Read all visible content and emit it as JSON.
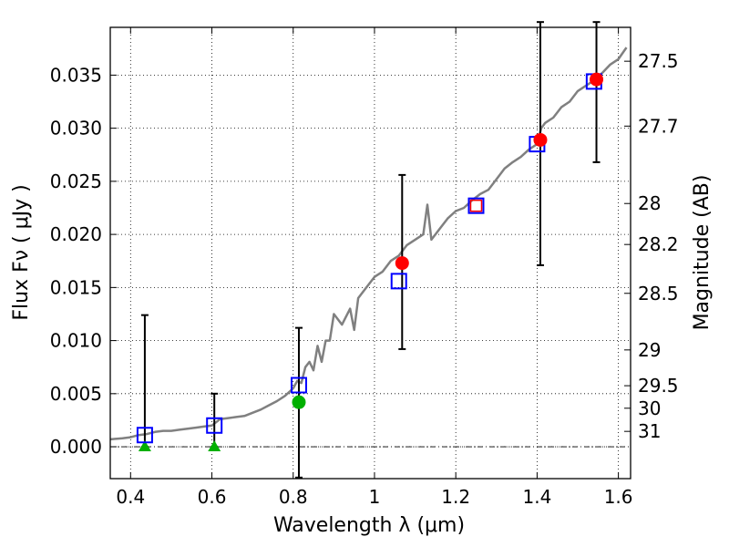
{
  "chart_data": {
    "type": "scatter",
    "xlabel": "Wavelength  λ (μm)",
    "ylabel_left": "Flux  Fν  ( μJy )",
    "ylabel_right": "Magnitude (AB)",
    "xlim": [
      0.35,
      1.63
    ],
    "ylim": [
      -0.003,
      0.0395
    ],
    "x_ticks": [
      0.4,
      0.6,
      0.8,
      1.0,
      1.2,
      1.4,
      1.6
    ],
    "x_tick_labels": [
      "0.4",
      "0.6",
      "0.8",
      "1",
      "1.2",
      "1.4",
      "1.6"
    ],
    "y_ticks": [
      0.0,
      0.005,
      0.01,
      0.015,
      0.02,
      0.025,
      0.03,
      0.035
    ],
    "y_tick_labels": [
      "0.000",
      "0.005",
      "0.010",
      "0.015",
      "0.020",
      "0.025",
      "0.030",
      "0.035"
    ],
    "right_ticks": [
      {
        "label": "27.5",
        "flux": 0.03631
      },
      {
        "label": "27.7",
        "flux": 0.0302
      },
      {
        "label": "28",
        "flux": 0.02291
      },
      {
        "label": "28.2",
        "flux": 0.01905
      },
      {
        "label": "28.5",
        "flux": 0.01445
      },
      {
        "label": "29",
        "flux": 0.00912
      },
      {
        "label": "29.5",
        "flux": 0.00575
      },
      {
        "label": "30",
        "flux": 0.00363
      },
      {
        "label": "31",
        "flux": 0.00145
      }
    ],
    "grid": true,
    "colors": {
      "model": "#808080",
      "squares": "#0000ff",
      "square_highlight": "#ff0000",
      "detections": "#ff0000",
      "marginal": "#00b000",
      "upper_limits": "#00b000",
      "errorbars": "#000000"
    },
    "model_spectrum": {
      "x": [
        0.35,
        0.38,
        0.4,
        0.42,
        0.44,
        0.46,
        0.48,
        0.5,
        0.52,
        0.54,
        0.56,
        0.58,
        0.6,
        0.62,
        0.64,
        0.66,
        0.68,
        0.7,
        0.72,
        0.74,
        0.76,
        0.78,
        0.8,
        0.81,
        0.82,
        0.83,
        0.84,
        0.85,
        0.86,
        0.87,
        0.88,
        0.89,
        0.9,
        0.92,
        0.94,
        0.95,
        0.96,
        0.98,
        1.0,
        1.02,
        1.04,
        1.06,
        1.08,
        1.1,
        1.12,
        1.13,
        1.14,
        1.16,
        1.18,
        1.2,
        1.22,
        1.24,
        1.26,
        1.28,
        1.3,
        1.32,
        1.34,
        1.36,
        1.38,
        1.4,
        1.41,
        1.42,
        1.44,
        1.46,
        1.48,
        1.5,
        1.52,
        1.54,
        1.56,
        1.58,
        1.6,
        1.62
      ],
      "y": [
        0.0007,
        0.0008,
        0.0009,
        0.0011,
        0.0012,
        0.0014,
        0.0015,
        0.0015,
        0.0016,
        0.0017,
        0.0018,
        0.0019,
        0.002,
        0.0026,
        0.0027,
        0.0028,
        0.0029,
        0.0032,
        0.0035,
        0.0039,
        0.0043,
        0.0048,
        0.0055,
        0.0062,
        0.006,
        0.0075,
        0.008,
        0.0072,
        0.0095,
        0.008,
        0.01,
        0.01,
        0.0125,
        0.0115,
        0.013,
        0.011,
        0.014,
        0.015,
        0.016,
        0.0165,
        0.0175,
        0.018,
        0.019,
        0.0195,
        0.02,
        0.0228,
        0.0195,
        0.0205,
        0.0215,
        0.0222,
        0.0225,
        0.0232,
        0.0238,
        0.0242,
        0.0252,
        0.0262,
        0.0268,
        0.0273,
        0.028,
        0.0285,
        0.03,
        0.0305,
        0.031,
        0.032,
        0.0325,
        0.0335,
        0.034,
        0.0345,
        0.0352,
        0.036,
        0.0365,
        0.0376
      ]
    },
    "squares": [
      {
        "x": 0.435,
        "y": 0.0011,
        "highlight": false
      },
      {
        "x": 0.606,
        "y": 0.002,
        "highlight": false
      },
      {
        "x": 0.814,
        "y": 0.0058,
        "highlight": false
      },
      {
        "x": 1.06,
        "y": 0.0156,
        "highlight": false
      },
      {
        "x": 1.25,
        "y": 0.0227,
        "highlight": true
      },
      {
        "x": 1.4,
        "y": 0.0285,
        "highlight": false
      },
      {
        "x": 1.54,
        "y": 0.0344,
        "highlight": false
      }
    ],
    "detections": [
      {
        "x": 1.068,
        "y": 0.0173,
        "yerr_low": 0.0092,
        "yerr_high": 0.0256
      },
      {
        "x": 1.408,
        "y": 0.0289,
        "yerr_low": 0.0171,
        "yerr_high": 0.04
      },
      {
        "x": 1.546,
        "y": 0.0346,
        "yerr_low": 0.0268,
        "yerr_high": 0.04
      }
    ],
    "marginal": [
      {
        "x": 0.814,
        "y": 0.0042,
        "yerr_low": -0.0029,
        "yerr_high": 0.0112
      }
    ],
    "upper_limits": [
      {
        "x": 0.435,
        "y": 0.0,
        "yerr_low": 0.0,
        "yerr_high": 0.0124
      },
      {
        "x": 0.606,
        "y": 0.0,
        "yerr_low": 0.0,
        "yerr_high": 0.005
      }
    ]
  }
}
